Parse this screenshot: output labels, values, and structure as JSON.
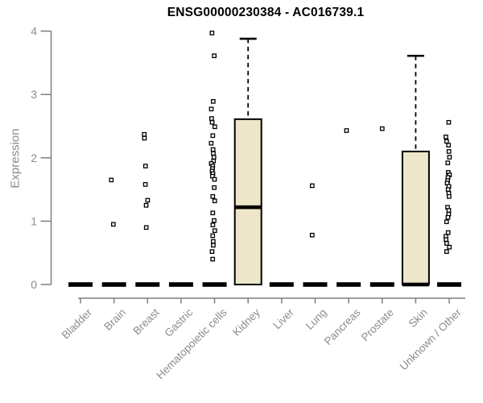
{
  "title": "ENSG00000230384 - AC016739.1",
  "y_axis": {
    "label": "Expression"
  },
  "colors": {
    "box_fill": "#EDE6C8",
    "box_stroke": "#000000",
    "axis_line": "#7E7E7E",
    "axis_text": "#8C8C8C",
    "title_text": "#000000",
    "background": "#FFFFFF"
  },
  "chart_data": {
    "type": "boxplot",
    "title": "ENSG00000230384 - AC016739.1",
    "xlabel": "",
    "ylabel": "Expression",
    "ylim": [
      0,
      4
    ],
    "yticks": [
      0,
      1,
      2,
      3,
      4
    ],
    "grid": false,
    "legend": false,
    "categories": [
      "Bladder",
      "Brain",
      "Breast",
      "Gastric",
      "Hematopoietic cells",
      "Kidney",
      "Liver",
      "Lung",
      "Pancreas",
      "Prostate",
      "Skin",
      "Unknown / Other"
    ],
    "boxes": [
      {
        "category": "Bladder",
        "q1": 0,
        "median": 0,
        "q3": 0,
        "whisker_low": 0,
        "whisker_high": 0,
        "points": []
      },
      {
        "category": "Brain",
        "q1": 0,
        "median": 0,
        "q3": 0,
        "whisker_low": 0,
        "whisker_high": 0,
        "points": [
          1.65,
          0.95
        ]
      },
      {
        "category": "Breast",
        "q1": 0,
        "median": 0,
        "q3": 0,
        "whisker_low": 0,
        "whisker_high": 0,
        "points": [
          2.37,
          2.31,
          1.87,
          1.58,
          1.33,
          1.25,
          0.9
        ]
      },
      {
        "category": "Gastric",
        "q1": 0,
        "median": 0,
        "q3": 0,
        "whisker_low": 0,
        "whisker_high": 0,
        "points": []
      },
      {
        "category": "Hematopoietic cells",
        "q1": 0,
        "median": 0,
        "q3": 0,
        "whisker_low": 0,
        "whisker_high": 0,
        "points": [
          3.97,
          3.61,
          2.89,
          2.77,
          2.62,
          2.56,
          2.49,
          2.35,
          2.23,
          2.13,
          2.07,
          2.01,
          1.95,
          1.91,
          1.87,
          1.83,
          1.79,
          1.75,
          1.71,
          1.66,
          1.53,
          1.39,
          1.32,
          1.13,
          1.01,
          0.94,
          0.85,
          0.77,
          0.68,
          0.62,
          0.52,
          0.4
        ]
      },
      {
        "category": "Kidney",
        "q1": 0,
        "median": 1.22,
        "q3": 2.61,
        "whisker_low": 0,
        "whisker_high": 3.88,
        "points": []
      },
      {
        "category": "Liver",
        "q1": 0,
        "median": 0,
        "q3": 0,
        "whisker_low": 0,
        "whisker_high": 0,
        "points": []
      },
      {
        "category": "Lung",
        "q1": 0,
        "median": 0,
        "q3": 0,
        "whisker_low": 0,
        "whisker_high": 0,
        "points": [
          1.56,
          0.78
        ]
      },
      {
        "category": "Pancreas",
        "q1": 0,
        "median": 0,
        "q3": 0,
        "whisker_low": 0,
        "whisker_high": 0,
        "points": [
          2.43
        ]
      },
      {
        "category": "Prostate",
        "q1": 0,
        "median": 0,
        "q3": 0,
        "whisker_low": 0,
        "whisker_high": 0,
        "points": [
          2.46
        ]
      },
      {
        "category": "Skin",
        "q1": 0,
        "median": 0,
        "q3": 2.1,
        "whisker_low": 0,
        "whisker_high": 3.61,
        "points": []
      },
      {
        "category": "Unknown / Other",
        "q1": 0,
        "median": 0,
        "q3": 0,
        "whisker_low": 0,
        "whisker_high": 0,
        "points": [
          2.56,
          2.33,
          2.26,
          2.2,
          2.1,
          2.01,
          1.92,
          1.77,
          1.73,
          1.69,
          1.64,
          1.6,
          1.55,
          1.5,
          1.44,
          1.39,
          1.22,
          1.17,
          1.11,
          1.06,
          0.99,
          0.82,
          0.76,
          0.71,
          0.65,
          0.59,
          0.52
        ]
      }
    ]
  }
}
